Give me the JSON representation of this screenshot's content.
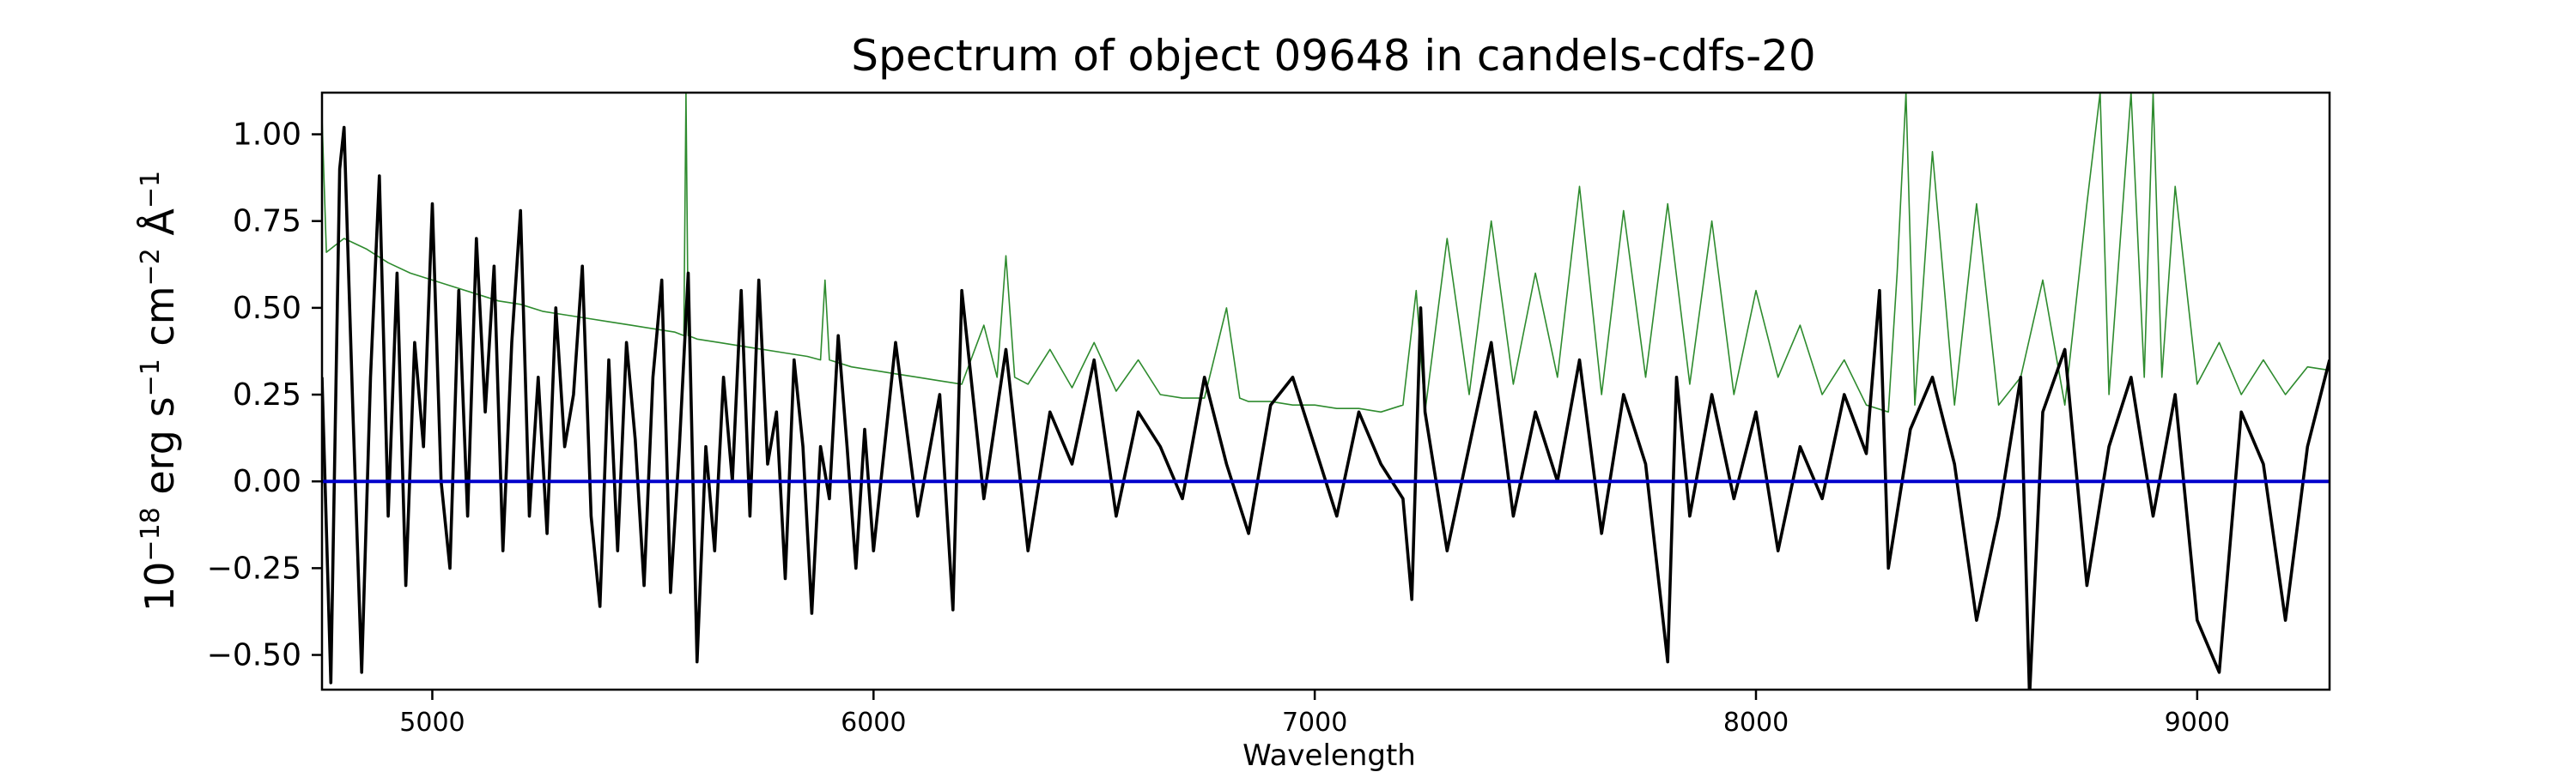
{
  "chart_data": {
    "type": "line",
    "title": "Spectrum of object 09648 in candels-cdfs-20",
    "xlabel": "Wavelength",
    "ylabel": {
      "base": "10",
      "base_exp": "−18",
      "erg": " erg s",
      "s_exp": "−1",
      "cm": " cm",
      "cm_exp": "−2",
      "ang": " Å",
      "ang_exp": "−1"
    },
    "xlim": [
      4750,
      9300
    ],
    "ylim": [
      -0.6,
      1.12
    ],
    "xticks": [
      5000,
      6000,
      7000,
      8000,
      9000
    ],
    "xtick_labels": [
      "5000",
      "6000",
      "7000",
      "8000",
      "9000"
    ],
    "yticks": [
      -0.5,
      -0.25,
      0.0,
      0.25,
      0.5,
      0.75,
      1.0
    ],
    "ytick_labels": [
      "−0.50",
      "−0.25",
      "0.00",
      "0.25",
      "0.50",
      "0.75",
      "1.00"
    ],
    "colors": {
      "flux": "#000000",
      "error": "#2e8b2e",
      "zero": "#0000cc"
    },
    "series": [
      {
        "style": "black thick line",
        "x": [
          4750,
          4770,
          4790,
          4800,
          4820,
          4840,
          4860,
          4880,
          4900,
          4920,
          4940,
          4960,
          4980,
          5000,
          5020,
          5040,
          5060,
          5080,
          5100,
          5120,
          5140,
          5160,
          5180,
          5200,
          5220,
          5240,
          5260,
          5280,
          5300,
          5320,
          5340,
          5360,
          5380,
          5400,
          5420,
          5440,
          5460,
          5480,
          5500,
          5520,
          5540,
          5560,
          5580,
          5600,
          5620,
          5640,
          5660,
          5680,
          5700,
          5720,
          5740,
          5760,
          5780,
          5800,
          5820,
          5840,
          5860,
          5880,
          5900,
          5920,
          5940,
          5960,
          5980,
          6000,
          6050,
          6100,
          6150,
          6180,
          6200,
          6250,
          6300,
          6350,
          6400,
          6450,
          6500,
          6550,
          6600,
          6650,
          6700,
          6750,
          6800,
          6850,
          6900,
          6950,
          7000,
          7050,
          7100,
          7150,
          7200,
          7220,
          7240,
          7250,
          7300,
          7350,
          7400,
          7450,
          7500,
          7550,
          7600,
          7650,
          7700,
          7750,
          7800,
          7820,
          7850,
          7900,
          7950,
          8000,
          8050,
          8100,
          8150,
          8200,
          8250,
          8280,
          8300,
          8350,
          8400,
          8450,
          8500,
          8550,
          8600,
          8620,
          8650,
          8700,
          8750,
          8800,
          8850,
          8900,
          8950,
          9000,
          9050,
          9100,
          9150,
          9200,
          9250,
          9300
        ],
        "y": [
          0.3,
          -0.58,
          0.9,
          1.02,
          0.2,
          -0.55,
          0.3,
          0.88,
          -0.1,
          0.6,
          -0.3,
          0.4,
          0.1,
          0.8,
          0.0,
          -0.25,
          0.55,
          -0.1,
          0.7,
          0.2,
          0.62,
          -0.2,
          0.4,
          0.78,
          -0.1,
          0.3,
          -0.15,
          0.5,
          0.1,
          0.25,
          0.62,
          -0.1,
          -0.36,
          0.35,
          -0.2,
          0.4,
          0.12,
          -0.3,
          0.3,
          0.58,
          -0.32,
          0.1,
          0.6,
          -0.52,
          0.1,
          -0.2,
          0.3,
          0.0,
          0.55,
          -0.1,
          0.58,
          0.05,
          0.2,
          -0.28,
          0.35,
          0.1,
          -0.38,
          0.1,
          -0.05,
          0.42,
          0.1,
          -0.25,
          0.15,
          -0.2,
          0.4,
          -0.1,
          0.25,
          -0.37,
          0.55,
          -0.05,
          0.38,
          -0.2,
          0.2,
          0.05,
          0.35,
          -0.1,
          0.2,
          0.1,
          -0.05,
          0.3,
          0.05,
          -0.15,
          0.22,
          0.3,
          0.1,
          -0.1,
          0.2,
          0.05,
          -0.05,
          -0.34,
          0.5,
          0.2,
          -0.2,
          0.1,
          0.4,
          -0.1,
          0.2,
          0.0,
          0.35,
          -0.15,
          0.25,
          0.05,
          -0.52,
          0.3,
          -0.1,
          0.25,
          -0.05,
          0.2,
          -0.2,
          0.1,
          -0.05,
          0.25,
          0.08,
          0.55,
          -0.25,
          0.15,
          0.3,
          0.05,
          -0.4,
          -0.1,
          0.3,
          -0.62,
          0.2,
          0.38,
          -0.3,
          0.1,
          0.3,
          -0.1,
          0.25,
          -0.4,
          -0.55,
          0.2,
          0.05,
          -0.4,
          0.1,
          0.35
        ]
      },
      {
        "style": "green thin line",
        "x": [
          4750,
          4760,
          4780,
          4800,
          4850,
          4900,
          4950,
          5000,
          5050,
          5100,
          5150,
          5200,
          5250,
          5300,
          5350,
          5400,
          5450,
          5500,
          5550,
          5570,
          5575,
          5580,
          5600,
          5650,
          5700,
          5750,
          5800,
          5850,
          5880,
          5890,
          5900,
          5950,
          6000,
          6050,
          6100,
          6150,
          6200,
          6250,
          6280,
          6300,
          6320,
          6350,
          6400,
          6450,
          6500,
          6550,
          6600,
          6650,
          6700,
          6750,
          6800,
          6830,
          6850,
          6900,
          6950,
          7000,
          7050,
          7100,
          7150,
          7200,
          7230,
          7250,
          7300,
          7350,
          7400,
          7450,
          7500,
          7550,
          7600,
          7650,
          7700,
          7750,
          7800,
          7850,
          7900,
          7950,
          8000,
          8050,
          8100,
          8150,
          8200,
          8250,
          8300,
          8320,
          8340,
          8360,
          8400,
          8450,
          8500,
          8550,
          8600,
          8650,
          8700,
          8750,
          8780,
          8800,
          8850,
          8880,
          8900,
          8920,
          8950,
          9000,
          9050,
          9100,
          9150,
          9200,
          9250,
          9300
        ],
        "y": [
          1.05,
          0.66,
          0.68,
          0.7,
          0.67,
          0.63,
          0.6,
          0.58,
          0.56,
          0.54,
          0.52,
          0.51,
          0.49,
          0.48,
          0.47,
          0.46,
          0.45,
          0.44,
          0.43,
          0.42,
          1.12,
          0.42,
          0.41,
          0.4,
          0.39,
          0.38,
          0.37,
          0.36,
          0.35,
          0.58,
          0.35,
          0.33,
          0.32,
          0.31,
          0.3,
          0.29,
          0.28,
          0.45,
          0.3,
          0.65,
          0.3,
          0.28,
          0.38,
          0.27,
          0.4,
          0.26,
          0.35,
          0.25,
          0.24,
          0.24,
          0.5,
          0.24,
          0.23,
          0.23,
          0.22,
          0.22,
          0.21,
          0.21,
          0.2,
          0.22,
          0.55,
          0.2,
          0.7,
          0.25,
          0.75,
          0.28,
          0.6,
          0.3,
          0.85,
          0.25,
          0.78,
          0.3,
          0.8,
          0.28,
          0.75,
          0.25,
          0.55,
          0.3,
          0.45,
          0.25,
          0.35,
          0.22,
          0.2,
          0.6,
          1.12,
          0.22,
          0.95,
          0.22,
          0.8,
          0.22,
          0.3,
          0.58,
          0.22,
          0.8,
          1.12,
          0.25,
          1.12,
          0.3,
          1.12,
          0.3,
          0.85,
          0.28,
          0.4,
          0.25,
          0.35,
          0.25,
          0.33,
          0.32
        ]
      },
      {
        "style": "blue zero line",
        "x": [
          4750,
          9300
        ],
        "y": [
          0.0,
          0.0
        ]
      }
    ]
  }
}
